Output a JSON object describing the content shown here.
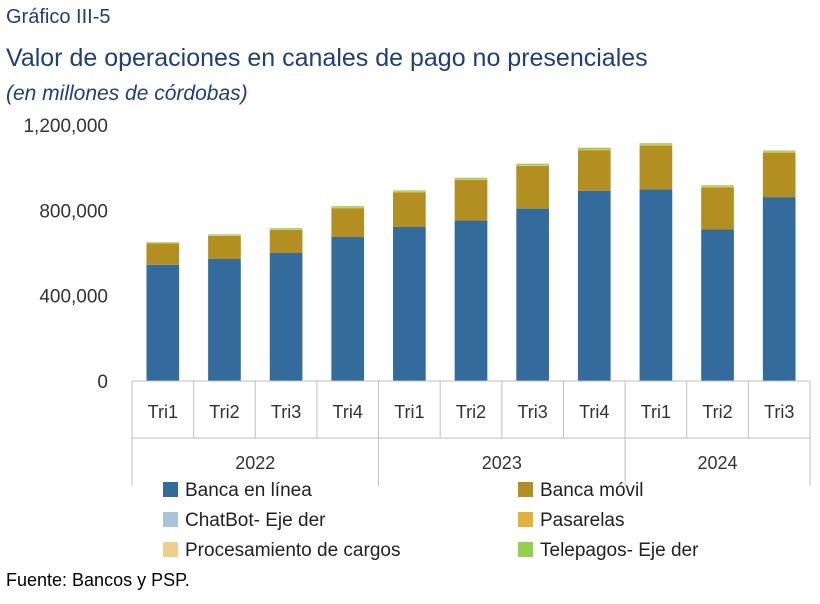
{
  "header": {
    "kicker": "Gráfico III-5",
    "title": "Valor de operaciones en canales de pago no presenciales",
    "subtitle": "(en millones de córdobas)"
  },
  "footer": {
    "source": "Fuente: Bancos y PSP."
  },
  "chart_data": {
    "type": "bar",
    "stacked": true,
    "categories": [
      "Tri1",
      "Tri2",
      "Tri3",
      "Tri4",
      "Tri1",
      "Tri2",
      "Tri3",
      "Tri4",
      "Tri1",
      "Tri2",
      "Tri3"
    ],
    "groups": [
      {
        "label": "2022",
        "count": 4
      },
      {
        "label": "2023",
        "count": 4
      },
      {
        "label": "2024",
        "count": 3
      }
    ],
    "ylim": [
      0,
      1200000
    ],
    "yticks": [
      0,
      400000,
      800000,
      1200000
    ],
    "ytick_labels": [
      "0",
      "400,000",
      "800,000",
      "1,200,000"
    ],
    "series": [
      {
        "name": "Banca en línea",
        "color": "#336b9c",
        "values": [
          545000,
          572000,
          600000,
          675000,
          722000,
          752000,
          808000,
          892000,
          898000,
          710000,
          862000
        ]
      },
      {
        "name": "Banca móvil",
        "color": "#b38f22",
        "values": [
          100000,
          108000,
          108000,
          135000,
          162000,
          190000,
          200000,
          190000,
          205000,
          198000,
          208000
        ]
      },
      {
        "name": "ChatBot- Eje der",
        "color": "#a9c3d8",
        "values": [
          500,
          500,
          500,
          500,
          500,
          500,
          500,
          500,
          500,
          500,
          500
        ]
      },
      {
        "name": "Pasarelas",
        "color": "#e3b23c",
        "values": [
          1500,
          2000,
          2000,
          3000,
          3000,
          3000,
          3000,
          3000,
          3000,
          3000,
          3000
        ]
      },
      {
        "name": "Procesamiento de cargos",
        "color": "#ecd08a",
        "values": [
          1000,
          1000,
          1000,
          1000,
          1000,
          1000,
          1000,
          1000,
          1000,
          1000,
          1000
        ]
      },
      {
        "name": "Telepagos- Eje der",
        "color": "#92d050",
        "values": [
          3000,
          4000,
          5000,
          5000,
          5000,
          6000,
          6000,
          7000,
          7000,
          5000,
          6000
        ]
      }
    ],
    "legend_position": "bottom",
    "grid": false
  }
}
